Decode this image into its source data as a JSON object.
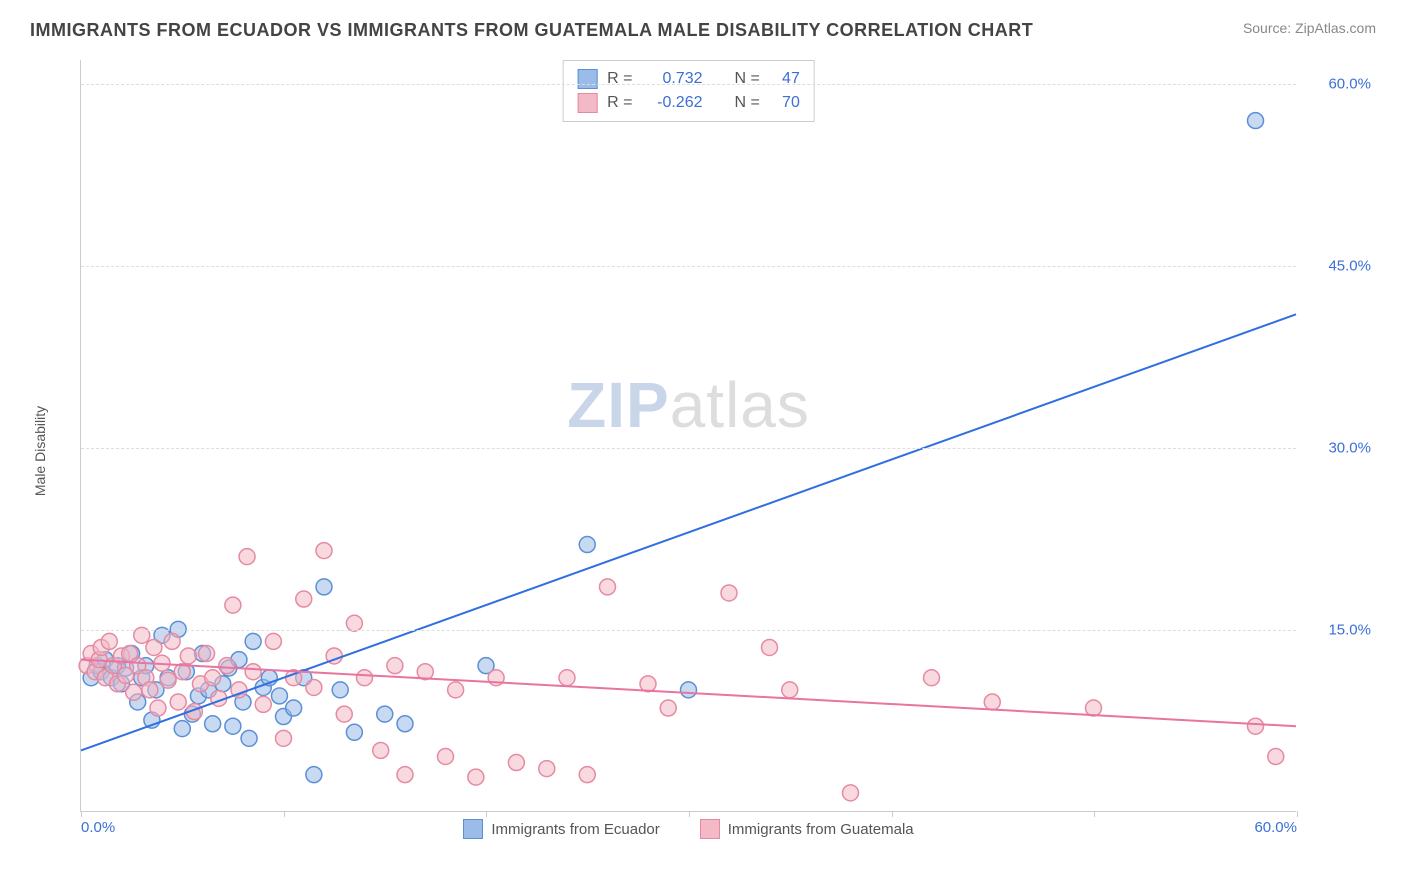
{
  "header": {
    "title": "IMMIGRANTS FROM ECUADOR VS IMMIGRANTS FROM GUATEMALA MALE DISABILITY CORRELATION CHART",
    "source": "Source: ZipAtlas.com"
  },
  "watermark": {
    "part1": "ZIP",
    "part2": "atlas"
  },
  "chart": {
    "type": "scatter",
    "ylabel": "Male Disability",
    "xlim": [
      0,
      60
    ],
    "ylim": [
      0,
      62
    ],
    "yticks": [
      15,
      30,
      45,
      60
    ],
    "ytick_labels": [
      "15.0%",
      "30.0%",
      "45.0%",
      "60.0%"
    ],
    "xticks_minor": [
      0,
      10,
      20,
      30,
      40,
      50,
      60
    ],
    "xtick_labels": {
      "0": "0.0%",
      "60": "60.0%"
    },
    "background_color": "#ffffff",
    "grid_color": "#dddddd",
    "marker_radius": 8,
    "marker_opacity": 0.55,
    "series": [
      {
        "key": "ecuador",
        "label": "Immigrants from Ecuador",
        "fill": "#9bbce8",
        "stroke": "#5b8fd6",
        "r_value": "0.732",
        "n_value": "47",
        "trend": {
          "x1": 0,
          "y1": 5,
          "x2": 60,
          "y2": 41,
          "color": "#2f6fe0",
          "width": 2
        },
        "points": [
          [
            0.5,
            11
          ],
          [
            0.8,
            12
          ],
          [
            1,
            11.5
          ],
          [
            1.2,
            12.5
          ],
          [
            1.5,
            11
          ],
          [
            1.8,
            12
          ],
          [
            2,
            10.5
          ],
          [
            2.2,
            11.8
          ],
          [
            2.5,
            13
          ],
          [
            2.8,
            9
          ],
          [
            3,
            11
          ],
          [
            3.2,
            12
          ],
          [
            3.5,
            7.5
          ],
          [
            3.7,
            10
          ],
          [
            4,
            14.5
          ],
          [
            4.3,
            11
          ],
          [
            4.8,
            15
          ],
          [
            5,
            6.8
          ],
          [
            5.2,
            11.5
          ],
          [
            5.5,
            8
          ],
          [
            5.8,
            9.5
          ],
          [
            6,
            13
          ],
          [
            6.3,
            10
          ],
          [
            6.5,
            7.2
          ],
          [
            7,
            10.5
          ],
          [
            7.3,
            11.8
          ],
          [
            7.5,
            7
          ],
          [
            7.8,
            12.5
          ],
          [
            8,
            9
          ],
          [
            8.3,
            6
          ],
          [
            8.5,
            14
          ],
          [
            9,
            10.2
          ],
          [
            9.3,
            11
          ],
          [
            9.8,
            9.5
          ],
          [
            10,
            7.8
          ],
          [
            10.5,
            8.5
          ],
          [
            11,
            11
          ],
          [
            11.5,
            3
          ],
          [
            12,
            18.5
          ],
          [
            12.8,
            10
          ],
          [
            13.5,
            6.5
          ],
          [
            15,
            8
          ],
          [
            16,
            7.2
          ],
          [
            20,
            12
          ],
          [
            25,
            22
          ],
          [
            30,
            10
          ],
          [
            58,
            57
          ]
        ]
      },
      {
        "key": "guatemala",
        "label": "Immigrants from Guatemala",
        "fill": "#f3b9c6",
        "stroke": "#e68aa2",
        "r_value": "-0.262",
        "n_value": "70",
        "trend": {
          "x1": 0,
          "y1": 12.5,
          "x2": 60,
          "y2": 7,
          "color": "#e874a0",
          "width": 2
        },
        "points": [
          [
            0.3,
            12
          ],
          [
            0.5,
            13
          ],
          [
            0.7,
            11.5
          ],
          [
            0.9,
            12.5
          ],
          [
            1,
            13.5
          ],
          [
            1.2,
            11
          ],
          [
            1.4,
            14
          ],
          [
            1.6,
            12
          ],
          [
            1.8,
            10.5
          ],
          [
            2,
            12.8
          ],
          [
            2.2,
            11.2
          ],
          [
            2.4,
            13
          ],
          [
            2.6,
            9.8
          ],
          [
            2.8,
            12
          ],
          [
            3,
            14.5
          ],
          [
            3.2,
            11
          ],
          [
            3.4,
            10
          ],
          [
            3.6,
            13.5
          ],
          [
            3.8,
            8.5
          ],
          [
            4,
            12.2
          ],
          [
            4.3,
            10.8
          ],
          [
            4.5,
            14
          ],
          [
            4.8,
            9
          ],
          [
            5,
            11.5
          ],
          [
            5.3,
            12.8
          ],
          [
            5.6,
            8.2
          ],
          [
            5.9,
            10.5
          ],
          [
            6.2,
            13
          ],
          [
            6.5,
            11
          ],
          [
            6.8,
            9.3
          ],
          [
            7.2,
            12
          ],
          [
            7.5,
            17
          ],
          [
            7.8,
            10
          ],
          [
            8.2,
            21
          ],
          [
            8.5,
            11.5
          ],
          [
            9,
            8.8
          ],
          [
            9.5,
            14
          ],
          [
            10,
            6
          ],
          [
            10.5,
            11
          ],
          [
            11,
            17.5
          ],
          [
            11.5,
            10.2
          ],
          [
            12,
            21.5
          ],
          [
            12.5,
            12.8
          ],
          [
            13,
            8
          ],
          [
            13.5,
            15.5
          ],
          [
            14,
            11
          ],
          [
            14.8,
            5
          ],
          [
            15.5,
            12
          ],
          [
            16,
            3
          ],
          [
            17,
            11.5
          ],
          [
            18,
            4.5
          ],
          [
            18.5,
            10
          ],
          [
            19.5,
            2.8
          ],
          [
            20.5,
            11
          ],
          [
            21.5,
            4
          ],
          [
            23,
            3.5
          ],
          [
            24,
            11
          ],
          [
            25,
            3
          ],
          [
            26,
            18.5
          ],
          [
            28,
            10.5
          ],
          [
            29,
            8.5
          ],
          [
            32,
            18
          ],
          [
            34,
            13.5
          ],
          [
            35,
            10
          ],
          [
            38,
            1.5
          ],
          [
            42,
            11
          ],
          [
            45,
            9
          ],
          [
            50,
            8.5
          ],
          [
            58,
            7
          ],
          [
            59,
            4.5
          ]
        ]
      }
    ],
    "stats_legend": {
      "r_label": "R =",
      "n_label": "N ="
    },
    "colors": {
      "tick_text": "#3b6fd6",
      "axis_text": "#555555"
    }
  }
}
